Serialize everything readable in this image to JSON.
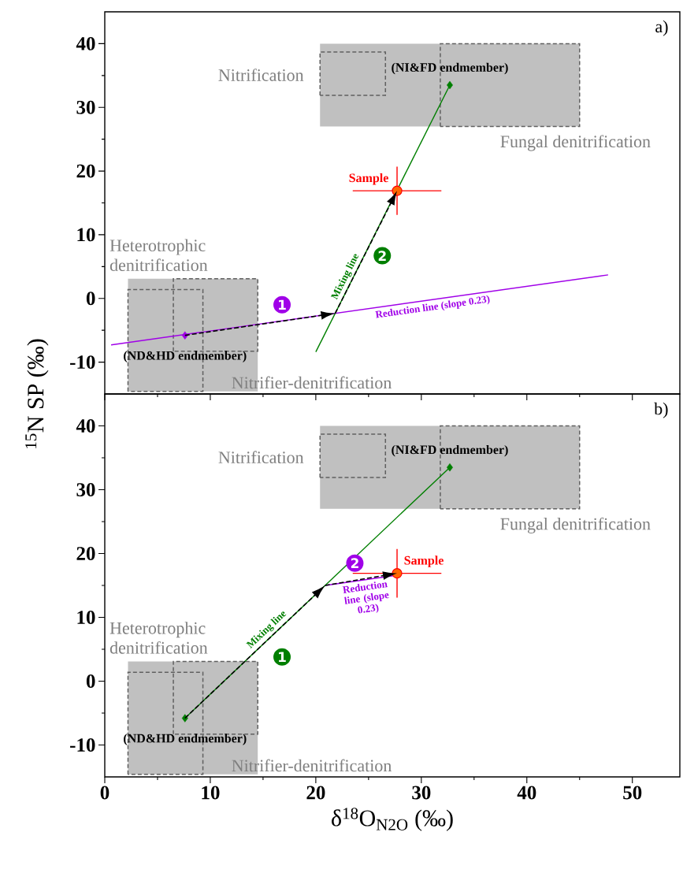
{
  "chart_data": [
    {
      "type": "line",
      "xlim": [
        0,
        54.5
      ],
      "ylim": [
        -15,
        45
      ],
      "xticks": [
        0,
        10,
        20,
        30,
        40,
        50
      ],
      "yticks": [
        -10,
        0,
        10,
        20,
        30,
        40
      ],
      "tick_labels": "y",
      "ylabel": "$^{15}$N SP (‰)",
      "series": [
        {
          "name": "Reduction line (slope 0.23)",
          "color": "#a000e8",
          "x": [
            0.6,
            47.7
          ],
          "values": [
            -7.3,
            3.7
          ]
        },
        {
          "name": "Mixing line",
          "color": "#007f00",
          "x": [
            20,
            32.7
          ],
          "values": [
            -8.4,
            33.5
          ]
        },
        {
          "type": "scatter",
          "marker": "diamond",
          "color": "#a000e8",
          "x": [
            7.6
          ],
          "values": [
            -5.8
          ]
        },
        {
          "type": "scatter",
          "marker": "diamond",
          "color": "#007f00",
          "x": [
            32.7
          ],
          "values": [
            33.5
          ]
        },
        {
          "type": "scatter",
          "marker": "circle",
          "color": "#ff6600",
          "x": [
            27.7
          ],
          "values": [
            16.9
          ],
          "errors": [
            3.8
          ],
          "xerrors": [
            4.2
          ]
        }
      ],
      "annotations": [
        "Nitrification",
        "Fungal denitrification",
        "Heterotrophic denitrification",
        "Nitrifier-denitrification",
        {
          "text": "(ND&HD endmember)",
          "x": 7.6,
          "y": -5.8
        },
        {
          "text": "(NI&FD endmember)",
          "x": 32.7,
          "y": 33.5
        },
        {
          "text": "Sample",
          "x": 27.7,
          "y": 16.9
        },
        "1",
        "2",
        "a)"
      ]
    },
    {
      "type": "line",
      "xlim": [
        0,
        54.5
      ],
      "ylim": [
        -15,
        45
      ],
      "xticks": [
        0,
        10,
        20,
        30,
        40,
        50
      ],
      "yticks": [
        -10,
        0,
        10,
        20,
        30,
        40
      ],
      "xlabel": "δ$^{18}$O$_{N2O}$ (‰)",
      "series": [
        {
          "name": "Reduction line (slope 0.23)",
          "color": "#a000e8",
          "x": [
            20.9,
            27.7
          ],
          "values": [
            15.0,
            16.6
          ]
        },
        {
          "name": "Mixing line",
          "color": "#007f00",
          "x": [
            7.6,
            32.7
          ],
          "values": [
            -5.8,
            33.5
          ]
        },
        {
          "type": "scatter",
          "marker": "diamond",
          "color": "#007f00",
          "x": [
            7.6
          ],
          "values": [
            -5.8
          ]
        },
        {
          "type": "scatter",
          "marker": "diamond",
          "color": "#007f00",
          "x": [
            32.7
          ],
          "values": [
            33.5
          ]
        },
        {
          "type": "scatter",
          "marker": "circle",
          "color": "#ff6600",
          "x": [
            27.7
          ],
          "values": [
            16.9
          ],
          "errors": [
            3.8
          ],
          "xerrors": [
            4.2
          ]
        }
      ],
      "annotations": [
        "Nitrification",
        "Fungal denitrification",
        "Heterotrophic denitrification",
        "Nitrifier-denitrification",
        {
          "text": "(ND&HD endmember)",
          "x": 7.6,
          "y": -5.8
        },
        {
          "text": "(NI&FD endmember)",
          "x": 32.7,
          "y": 33.5
        },
        {
          "text": "Sample",
          "x": 27.7,
          "y": 16.9
        },
        "1",
        "2",
        "b)"
      ]
    }
  ]
}
